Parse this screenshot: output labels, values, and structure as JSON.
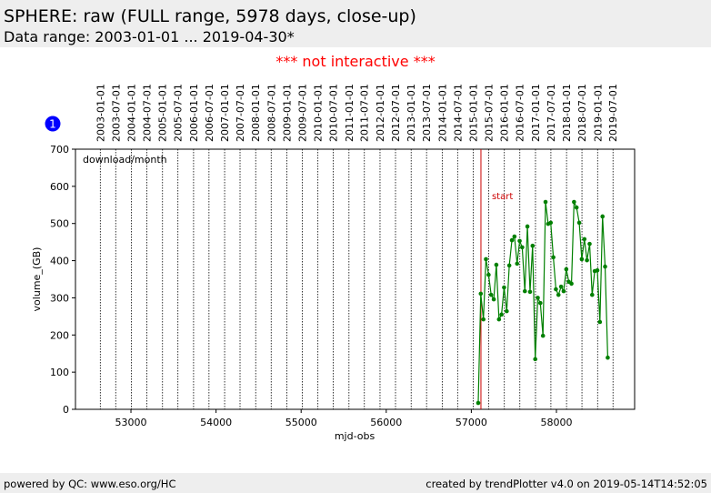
{
  "header": {
    "title": "SPHERE: raw (FULL range, 5978 days, close-up)",
    "subtitle": "Data range: 2003-01-01 ... 2019-04-30*"
  },
  "notice": "*** not interactive ***",
  "badge": "1",
  "footer": {
    "left": "powered by QC: www.eso.org/HC",
    "right": "created by trendPlotter v4.0 on 2019-05-14T14:52:05"
  },
  "chart_data": {
    "type": "line",
    "xlabel": "mjd-obs",
    "ylabel": "volume_(GB)",
    "panel_label": "download/month",
    "xlim": [
      52348,
      58919
    ],
    "ylim": [
      0,
      700
    ],
    "xticks": [
      53000,
      54000,
      55000,
      56000,
      57000,
      58000
    ],
    "yticks": [
      0,
      100,
      200,
      300,
      400,
      500,
      600,
      700
    ],
    "date_ticks": [
      {
        "value": 52640,
        "label": "2003-01-01"
      },
      {
        "value": 52821,
        "label": "2003-07-01"
      },
      {
        "value": 53005,
        "label": "2004-01-01"
      },
      {
        "value": 53187,
        "label": "2004-07-01"
      },
      {
        "value": 53371,
        "label": "2005-01-01"
      },
      {
        "value": 53552,
        "label": "2005-07-01"
      },
      {
        "value": 53736,
        "label": "2006-01-01"
      },
      {
        "value": 53917,
        "label": "2006-07-01"
      },
      {
        "value": 54101,
        "label": "2007-01-01"
      },
      {
        "value": 54282,
        "label": "2007-07-01"
      },
      {
        "value": 54466,
        "label": "2008-01-01"
      },
      {
        "value": 54648,
        "label": "2008-07-01"
      },
      {
        "value": 54832,
        "label": "2009-01-01"
      },
      {
        "value": 55013,
        "label": "2009-07-01"
      },
      {
        "value": 55197,
        "label": "2010-01-01"
      },
      {
        "value": 55378,
        "label": "2010-07-01"
      },
      {
        "value": 55562,
        "label": "2011-01-01"
      },
      {
        "value": 55743,
        "label": "2011-07-01"
      },
      {
        "value": 55927,
        "label": "2012-01-01"
      },
      {
        "value": 56109,
        "label": "2012-07-01"
      },
      {
        "value": 56293,
        "label": "2013-01-01"
      },
      {
        "value": 56474,
        "label": "2013-07-01"
      },
      {
        "value": 56658,
        "label": "2014-01-01"
      },
      {
        "value": 56839,
        "label": "2014-07-01"
      },
      {
        "value": 57023,
        "label": "2015-01-01"
      },
      {
        "value": 57204,
        "label": "2015-07-01"
      },
      {
        "value": 57388,
        "label": "2016-01-01"
      },
      {
        "value": 57570,
        "label": "2016-07-01"
      },
      {
        "value": 57754,
        "label": "2017-01-01"
      },
      {
        "value": 57935,
        "label": "2017-07-01"
      },
      {
        "value": 58119,
        "label": "2018-01-01"
      },
      {
        "value": 58300,
        "label": "2018-07-01"
      },
      {
        "value": 58484,
        "label": "2019-01-01"
      },
      {
        "value": 58665,
        "label": "2019-07-01"
      }
    ],
    "annotation": {
      "text": "start",
      "x": 57113,
      "color": "#cc0000"
    },
    "series": [
      {
        "color": "#008000",
        "x": [
          57081,
          57111,
          57142,
          57172,
          57203,
          57233,
          57264,
          57294,
          57325,
          57355,
          57385,
          57416,
          57446,
          57477,
          57507,
          57538,
          57568,
          57598,
          57629,
          57659,
          57690,
          57720,
          57751,
          57781,
          57811,
          57842,
          57872,
          57903,
          57933,
          57964,
          57994,
          58024,
          58055,
          58085,
          58116,
          58146,
          58177,
          58207,
          58237,
          58268,
          58298,
          58329,
          58359,
          58390,
          58420,
          58450,
          58481,
          58511,
          58542,
          58572,
          58603
        ],
        "values": [
          17,
          311,
          242,
          404,
          362,
          308,
          296,
          389,
          242,
          255,
          328,
          264,
          387,
          455,
          465,
          392,
          453,
          436,
          318,
          492,
          316,
          440,
          135,
          300,
          286,
          198,
          558,
          499,
          502,
          409,
          323,
          308,
          330,
          318,
          377,
          343,
          338,
          558,
          543,
          502,
          404,
          458,
          401,
          445,
          308,
          372,
          374,
          235,
          519,
          384,
          139
        ]
      }
    ]
  }
}
